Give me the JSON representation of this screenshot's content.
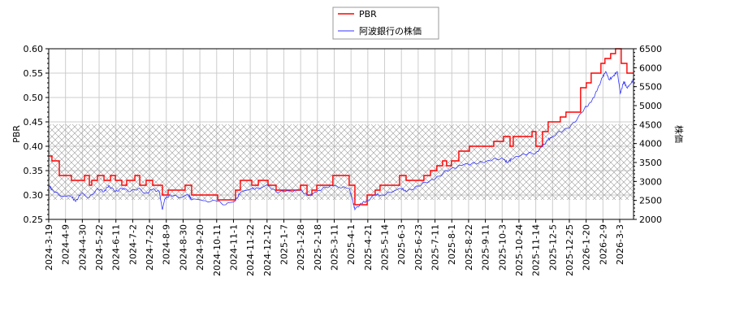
{
  "chart_data": {
    "type": "line",
    "title": "",
    "xlabel": "",
    "ylabel_left": "PBR",
    "ylabel_right": "株価",
    "ylim_left": [
      0.25,
      0.6
    ],
    "ylim_right": [
      2000,
      6500
    ],
    "yticks_left": [
      "0.25",
      "0.30",
      "0.35",
      "0.40",
      "0.45",
      "0.50",
      "0.55",
      "0.60"
    ],
    "yticks_right": [
      "2000",
      "2500",
      "3000",
      "3500",
      "4000",
      "4500",
      "5000",
      "5500",
      "6000",
      "6500"
    ],
    "x_tick_labels": [
      "2024-3-19",
      "2024-4-9",
      "2024-4-30",
      "2024-5-22",
      "2024-6-11",
      "2024-7-2",
      "2024-7-22",
      "2024-8-9",
      "2024-8-30",
      "2024-9-20",
      "2024-10-11",
      "2024-11-1",
      "2024-11-22",
      "2024-12-12",
      "2025-1-7",
      "2025-1-28",
      "2025-2-18",
      "2025-3-11",
      "2025-4-1",
      "2025-4-21",
      "2025-5-14",
      "2025-6-3",
      "2025-6-23",
      "2025-7-11",
      "2025-8-1",
      "2025-8-22",
      "2025-9-11",
      "2025-10-3",
      "2025-10-24",
      "2025-11-14",
      "2025-12-5",
      "2025-12-25",
      "2026-1-20",
      "2026-2-9",
      "2026-3-3"
    ],
    "xlim": [
      0,
      34.82
    ],
    "grid": true,
    "legend_placement": "top-center",
    "shaded_band_pbr": [
      0.29,
      0.445
    ],
    "series": [
      {
        "name": "PBR",
        "axis": "left",
        "color": "#ff0000",
        "step": true,
        "points": [
          [
            0,
            0.38
          ],
          [
            0.19,
            0.37
          ],
          [
            0.63,
            0.34
          ],
          [
            1.35,
            0.33
          ],
          [
            2.13,
            0.34
          ],
          [
            2.42,
            0.32
          ],
          [
            2.56,
            0.33
          ],
          [
            2.9,
            0.34
          ],
          [
            3.29,
            0.33
          ],
          [
            3.68,
            0.34
          ],
          [
            3.97,
            0.33
          ],
          [
            4.35,
            0.32
          ],
          [
            4.64,
            0.33
          ],
          [
            5.13,
            0.34
          ],
          [
            5.42,
            0.32
          ],
          [
            5.8,
            0.33
          ],
          [
            6.19,
            0.32
          ],
          [
            6.77,
            0.3
          ],
          [
            7.11,
            0.31
          ],
          [
            8.12,
            0.32
          ],
          [
            8.51,
            0.3
          ],
          [
            10.06,
            0.29
          ],
          [
            11.12,
            0.31
          ],
          [
            11.41,
            0.33
          ],
          [
            12.09,
            0.32
          ],
          [
            12.48,
            0.33
          ],
          [
            13.06,
            0.32
          ],
          [
            13.54,
            0.31
          ],
          [
            14.99,
            0.32
          ],
          [
            15.38,
            0.3
          ],
          [
            15.67,
            0.31
          ],
          [
            15.96,
            0.32
          ],
          [
            16.92,
            0.34
          ],
          [
            17.89,
            0.32
          ],
          [
            18.23,
            0.28
          ],
          [
            18.96,
            0.3
          ],
          [
            19.44,
            0.31
          ],
          [
            19.73,
            0.32
          ],
          [
            20.89,
            0.34
          ],
          [
            21.28,
            0.33
          ],
          [
            22.34,
            0.34
          ],
          [
            22.73,
            0.35
          ],
          [
            23.11,
            0.36
          ],
          [
            23.45,
            0.37
          ],
          [
            23.69,
            0.36
          ],
          [
            23.98,
            0.37
          ],
          [
            24.42,
            0.39
          ],
          [
            25.05,
            0.4
          ],
          [
            26.5,
            0.41
          ],
          [
            27.08,
            0.42
          ],
          [
            27.47,
            0.4
          ],
          [
            27.66,
            0.42
          ],
          [
            28.78,
            0.43
          ],
          [
            29.01,
            0.4
          ],
          [
            29.4,
            0.43
          ],
          [
            29.74,
            0.45
          ],
          [
            30.46,
            0.46
          ],
          [
            30.8,
            0.47
          ],
          [
            31.67,
            0.52
          ],
          [
            32.01,
            0.53
          ],
          [
            32.3,
            0.55
          ],
          [
            32.88,
            0.57
          ],
          [
            33.12,
            0.58
          ],
          [
            33.46,
            0.59
          ],
          [
            33.75,
            0.6
          ],
          [
            34.09,
            0.57
          ],
          [
            34.43,
            0.55
          ],
          [
            34.82,
            0.55
          ]
        ]
      },
      {
        "name": "阿波銀行の株価",
        "axis": "right",
        "color": "#3333ff",
        "step": false,
        "points": [
          [
            0,
            2900
          ],
          [
            0.19,
            2793
          ],
          [
            0.63,
            2643
          ],
          [
            1.35,
            2600
          ],
          [
            1.6,
            2471
          ],
          [
            1.93,
            2686
          ],
          [
            2.42,
            2579
          ],
          [
            2.9,
            2814
          ],
          [
            3.29,
            2729
          ],
          [
            3.58,
            2900
          ],
          [
            3.97,
            2729
          ],
          [
            4.35,
            2814
          ],
          [
            4.84,
            2729
          ],
          [
            5.32,
            2814
          ],
          [
            5.8,
            2686
          ],
          [
            6.19,
            2793
          ],
          [
            6.58,
            2729
          ],
          [
            6.77,
            2257
          ],
          [
            6.91,
            2536
          ],
          [
            7.25,
            2643
          ],
          [
            7.74,
            2579
          ],
          [
            8.32,
            2643
          ],
          [
            8.51,
            2514
          ],
          [
            9.19,
            2493
          ],
          [
            10.06,
            2471
          ],
          [
            10.54,
            2386
          ],
          [
            11.12,
            2493
          ],
          [
            11.41,
            2707
          ],
          [
            12.09,
            2814
          ],
          [
            12.48,
            2814
          ],
          [
            13.06,
            2900
          ],
          [
            13.54,
            2729
          ],
          [
            14.02,
            2729
          ],
          [
            14.99,
            2771
          ],
          [
            15.38,
            2643
          ],
          [
            15.96,
            2729
          ],
          [
            16.44,
            2857
          ],
          [
            16.92,
            2879
          ],
          [
            17.89,
            2814
          ],
          [
            18.09,
            2514
          ],
          [
            18.23,
            2257
          ],
          [
            18.62,
            2429
          ],
          [
            18.96,
            2493
          ],
          [
            19.44,
            2643
          ],
          [
            19.83,
            2643
          ],
          [
            20.31,
            2707
          ],
          [
            20.99,
            2814
          ],
          [
            21.28,
            2729
          ],
          [
            21.76,
            2814
          ],
          [
            22.24,
            2943
          ],
          [
            22.73,
            3029
          ],
          [
            23.21,
            3136
          ],
          [
            23.69,
            3286
          ],
          [
            24.18,
            3350
          ],
          [
            24.66,
            3436
          ],
          [
            25.15,
            3457
          ],
          [
            25.63,
            3500
          ],
          [
            26.11,
            3543
          ],
          [
            26.6,
            3607
          ],
          [
            27.08,
            3586
          ],
          [
            27.32,
            3500
          ],
          [
            27.56,
            3586
          ],
          [
            28.05,
            3671
          ],
          [
            28.53,
            3736
          ],
          [
            29.01,
            3757
          ],
          [
            29.4,
            3929
          ],
          [
            29.74,
            4100
          ],
          [
            29.98,
            4186
          ],
          [
            30.46,
            4314
          ],
          [
            30.95,
            4400
          ],
          [
            31.43,
            4614
          ],
          [
            31.91,
            4936
          ],
          [
            32.3,
            5086
          ],
          [
            32.64,
            5386
          ],
          [
            32.98,
            5750
          ],
          [
            33.17,
            5900
          ],
          [
            33.37,
            5686
          ],
          [
            33.61,
            5771
          ],
          [
            33.85,
            5900
          ],
          [
            34.04,
            5321
          ],
          [
            34.24,
            5643
          ],
          [
            34.43,
            5471
          ],
          [
            34.62,
            5557
          ],
          [
            34.82,
            5686
          ]
        ]
      }
    ]
  }
}
